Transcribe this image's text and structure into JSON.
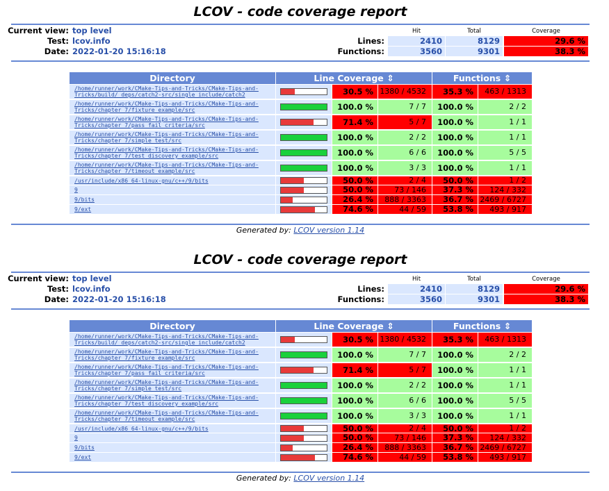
{
  "title": "LCOV - code coverage report",
  "header": {
    "current_view_label": "Current view:",
    "current_view": "top level",
    "test_label": "Test:",
    "test": "lcov.info",
    "date_label": "Date:",
    "date": "2022-01-20 15:16:18",
    "col_hit": "Hit",
    "col_total": "Total",
    "col_coverage": "Coverage",
    "lines_label": "Lines:",
    "lines_hit": "2410",
    "lines_total": "8129",
    "lines_cov": "29.6 %",
    "functions_label": "Functions:",
    "functions_hit": "3560",
    "functions_total": "9301",
    "functions_cov": "38.3 %"
  },
  "table": {
    "col_directory": "Directory",
    "col_line_coverage": "Line Coverage ⇕",
    "col_functions": "Functions ⇕",
    "rows": [
      {
        "dir1": "/home/runner/work/CMake-Tips-and-Tricks/CMake-Tips-and-",
        "dir2": "Tricks/build/_deps/catch2-src/single_include/catch2",
        "line_frac": 0.305,
        "line_pct": "30.5 %",
        "line_nums": "1380 / 4532",
        "func_pct": "35.3 %",
        "func_nums": "463 / 1313",
        "line_ok": false,
        "func_ok": false
      },
      {
        "dir1": "/home/runner/work/CMake-Tips-and-Tricks/CMake-Tips-and-",
        "dir2": "Tricks/chapter_7/fixture_example/src",
        "line_frac": 1.0,
        "line_pct": "100.0 %",
        "line_nums": "7 / 7",
        "func_pct": "100.0 %",
        "func_nums": "2 / 2",
        "line_ok": true,
        "func_ok": true
      },
      {
        "dir1": "/home/runner/work/CMake-Tips-and-Tricks/CMake-Tips-and-",
        "dir2": "Tricks/chapter_7/pass_fail_criteria/src",
        "line_frac": 0.714,
        "line_pct": "71.4 %",
        "line_nums": "5 / 7",
        "func_pct": "100.0 %",
        "func_nums": "1 / 1",
        "line_ok": false,
        "func_ok": true
      },
      {
        "dir1": "/home/runner/work/CMake-Tips-and-Tricks/CMake-Tips-and-",
        "dir2": "Tricks/chapter_7/simple_test/src",
        "line_frac": 1.0,
        "line_pct": "100.0 %",
        "line_nums": "2 / 2",
        "func_pct": "100.0 %",
        "func_nums": "1 / 1",
        "line_ok": true,
        "func_ok": true
      },
      {
        "dir1": "/home/runner/work/CMake-Tips-and-Tricks/CMake-Tips-and-",
        "dir2": "Tricks/chapter_7/test_discovery_example/src",
        "line_frac": 1.0,
        "line_pct": "100.0 %",
        "line_nums": "6 / 6",
        "func_pct": "100.0 %",
        "func_nums": "5 / 5",
        "line_ok": true,
        "func_ok": true
      },
      {
        "dir1": "/home/runner/work/CMake-Tips-and-Tricks/CMake-Tips-and-",
        "dir2": "Tricks/chapter_7/timeout_example/src",
        "line_frac": 1.0,
        "line_pct": "100.0 %",
        "line_nums": "3 / 3",
        "func_pct": "100.0 %",
        "func_nums": "1 / 1",
        "line_ok": true,
        "func_ok": true
      },
      {
        "dir1": "/usr/include/x86_64-linux-gnu/c++/9/bits",
        "dir2": "",
        "line_frac": 0.5,
        "line_pct": "50.0 %",
        "line_nums": "2 / 4",
        "func_pct": "50.0 %",
        "func_nums": "1 / 2",
        "line_ok": false,
        "func_ok": false
      },
      {
        "dir1": "9",
        "dir2": "",
        "line_frac": 0.5,
        "line_pct": "50.0 %",
        "line_nums": "73 / 146",
        "func_pct": "37.3 %",
        "func_nums": "124 / 332",
        "line_ok": false,
        "func_ok": false
      },
      {
        "dir1": "9/bits",
        "dir2": "",
        "line_frac": 0.264,
        "line_pct": "26.4 %",
        "line_nums": "888 / 3363",
        "func_pct": "36.7 %",
        "func_nums": "2469 / 6727",
        "line_ok": false,
        "func_ok": false
      },
      {
        "dir1": "9/ext",
        "dir2": "",
        "line_frac": 0.746,
        "line_pct": "74.6 %",
        "line_nums": "44 / 59",
        "func_pct": "53.8 %",
        "func_nums": "493 / 917",
        "line_ok": false,
        "func_ok": false
      }
    ]
  },
  "footer": {
    "generated_by": "Generated by:",
    "link_text": "LCOV version 1.14"
  },
  "colors": {
    "header_blue": "#6688d4",
    "cell_blue": "#dae7fe",
    "coverage_hi": "#a7fc9d",
    "coverage_lo": "#ff0000",
    "bar_hi": "#1ad13c",
    "bar_lo": "#e83a3a",
    "link": "#284fa8"
  }
}
